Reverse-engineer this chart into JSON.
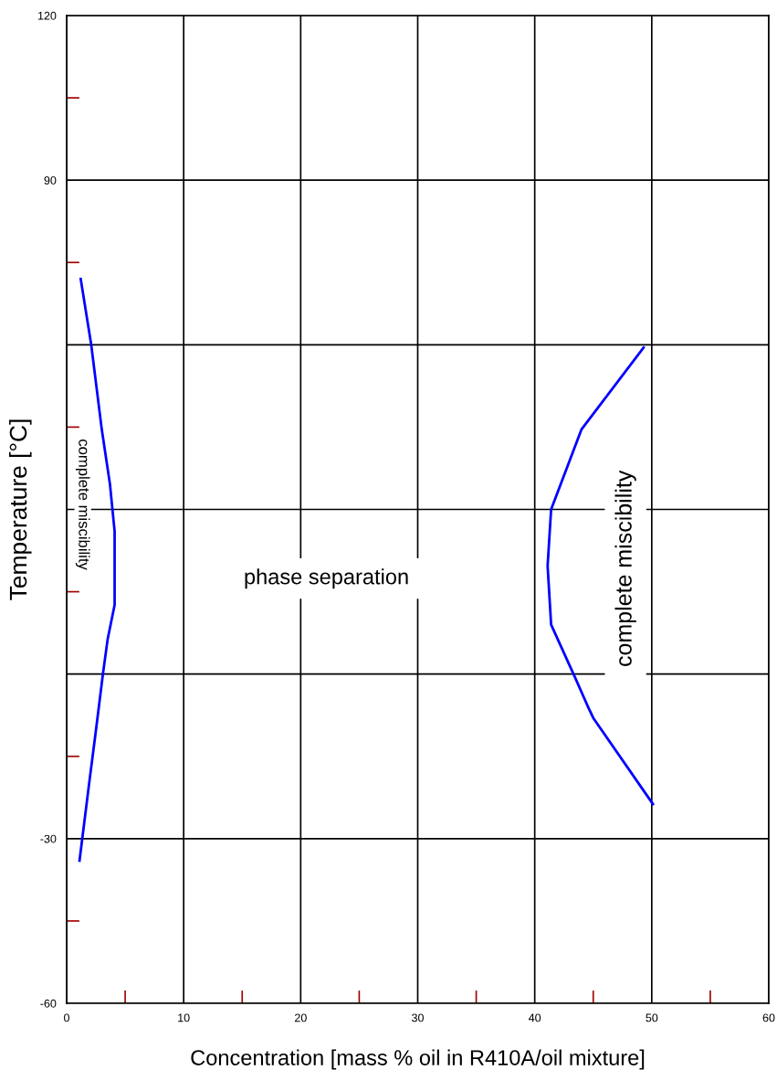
{
  "chart_data": {
    "type": "line",
    "xlabel": "Concentration [mass % oil in R410A/oil mixture]",
    "ylabel": "Temperature [°C]",
    "xlim": [
      0,
      60
    ],
    "xticks": [
      0,
      10,
      20,
      30,
      40,
      50,
      60
    ],
    "ylim": [
      -60,
      120
    ],
    "yticks": [
      -60,
      -30,
      {
        "value": 0,
        "label": null
      },
      {
        "value": 30,
        "label": null
      },
      {
        "value": 60,
        "label": null
      },
      90,
      120
    ],
    "grid": true,
    "legend": false,
    "marker": "none",
    "line_style": "solid",
    "series": [
      {
        "color": "#0000ff",
        "x": [
          1.2,
          2.1,
          3.0,
          3.7,
          4.1,
          4.1,
          3.5,
          3.1,
          2.5,
          1.9,
          1.1
        ],
        "values": [
          72,
          60,
          44.6,
          34.6,
          26,
          12.6,
          6.3,
          0,
          -10.3,
          -20.3,
          -34
        ]
      },
      {
        "color": "#0000ff",
        "x": [
          49.3,
          44.0,
          41.4,
          41.1,
          41.4,
          43.4,
          44.6,
          45.0,
          50.1
        ],
        "values": [
          59.5,
          44.6,
          30,
          19.7,
          9,
          -0.4,
          -6.2,
          -8,
          -23.7
        ]
      }
    ],
    "annotations": [
      "complete miscibility",
      "phase separation",
      "complete miscibility"
    ]
  }
}
